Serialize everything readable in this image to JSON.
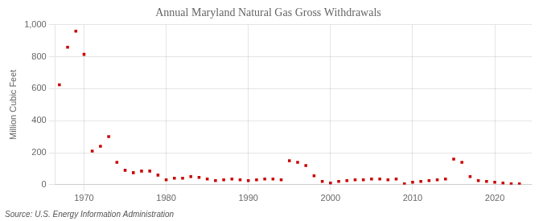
{
  "chart_data": {
    "type": "scatter",
    "title": "Annual Maryland Natural Gas Gross Withdrawals",
    "ylabel": "Million Cubic Feet",
    "annotation": "Source: U.S. Energy Information Administration",
    "x": [
      1967,
      1968,
      1969,
      1970,
      1971,
      1972,
      1973,
      1974,
      1975,
      1976,
      1977,
      1978,
      1979,
      1980,
      1981,
      1982,
      1983,
      1984,
      1985,
      1986,
      1987,
      1988,
      1989,
      1990,
      1991,
      1992,
      1993,
      1994,
      1995,
      1996,
      1997,
      1998,
      1999,
      2000,
      2001,
      2002,
      2003,
      2004,
      2005,
      2006,
      2007,
      2008,
      2009,
      2010,
      2011,
      2012,
      2013,
      2014,
      2015,
      2016,
      2017,
      2018,
      2019,
      2020,
      2021,
      2022,
      2023
    ],
    "values": [
      625,
      860,
      960,
      815,
      210,
      240,
      300,
      140,
      90,
      75,
      85,
      85,
      60,
      30,
      40,
      40,
      50,
      45,
      35,
      25,
      30,
      35,
      30,
      25,
      30,
      35,
      35,
      30,
      150,
      140,
      120,
      55,
      20,
      10,
      20,
      25,
      30,
      30,
      35,
      35,
      30,
      35,
      5,
      15,
      20,
      25,
      30,
      35,
      160,
      140,
      50,
      25,
      20,
      15,
      10,
      5,
      5
    ],
    "color": "#cc0000",
    "marker": "square",
    "xlim": [
      1966.5,
      2024.5
    ],
    "xticks": [
      1970,
      1980,
      1990,
      2000,
      2010,
      2020
    ],
    "ylim": [
      0,
      1000
    ],
    "yticks": [
      0,
      200,
      400,
      600,
      800,
      {
        "value": 1000,
        "label": "1,000"
      }
    ],
    "grid": true
  }
}
